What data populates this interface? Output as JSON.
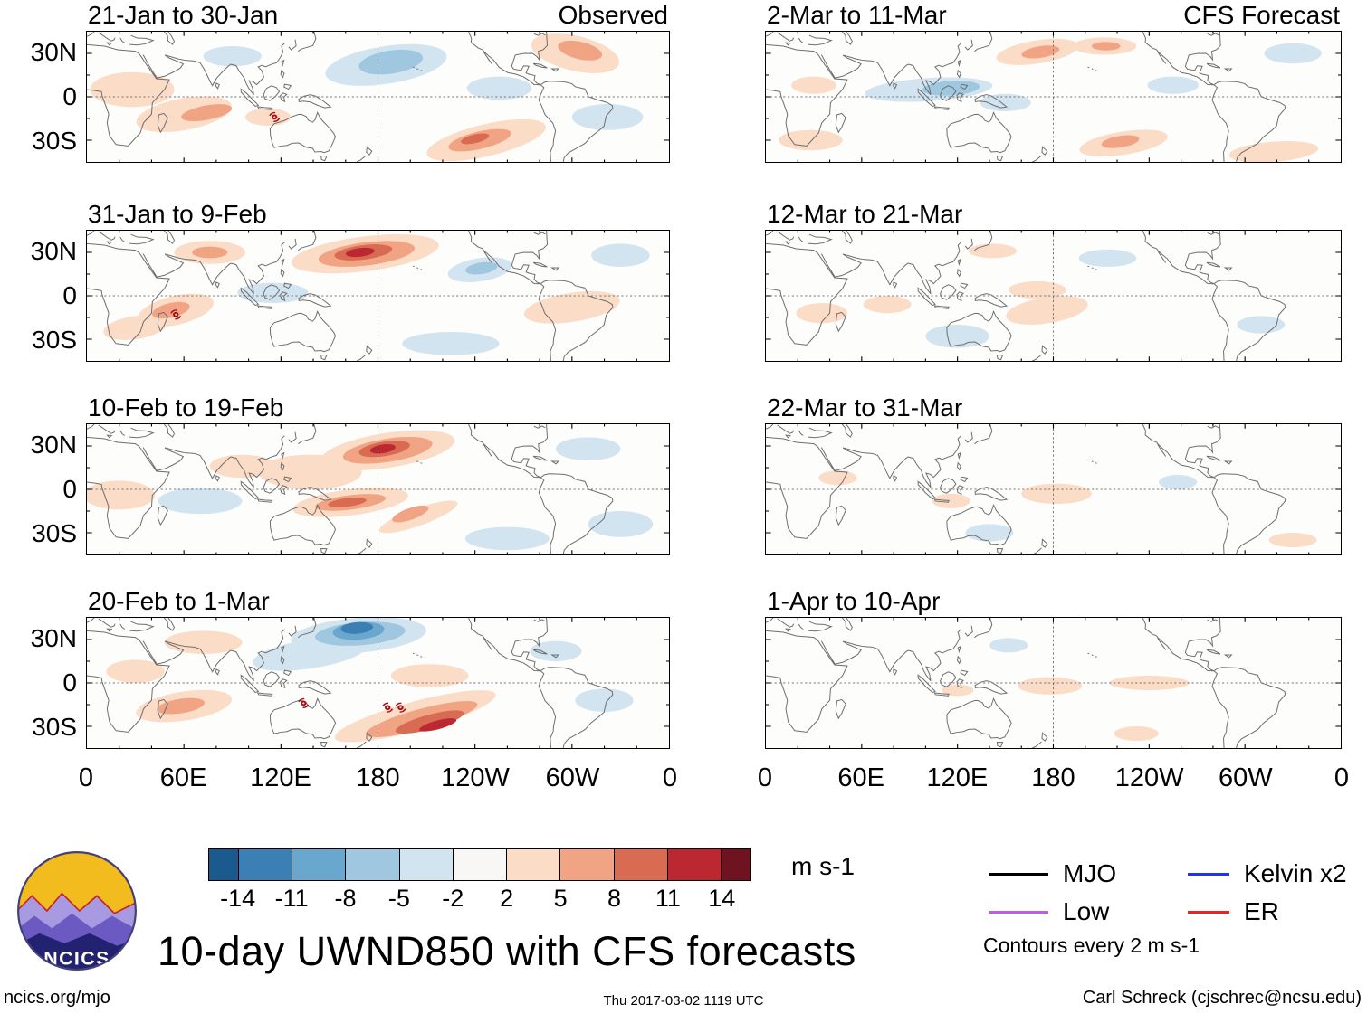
{
  "logo": {
    "text": "NCICS"
  },
  "footer": {
    "left": "ncics.org/mjo",
    "center": "Thu 2017-03-02 1119 UTC",
    "right": "Carl Schreck (cjschrec@ncsu.edu)"
  },
  "chart_data": {
    "type": "heatmap",
    "title": "10-day UWND850 with CFS forecasts",
    "contour_note": "Contours every 2 m s-1",
    "x_ticks": [
      "0",
      "60E",
      "120E",
      "180",
      "120W",
      "60W",
      "0"
    ],
    "y_ticks": [
      "30N",
      "0",
      "30S"
    ],
    "colorbar": {
      "boundaries": [
        -14,
        -11,
        -8,
        -5,
        -2,
        2,
        5,
        8,
        11,
        14
      ],
      "colors": [
        "#1a5a8e",
        "#3b7fb5",
        "#6aa7cf",
        "#9fc8e0",
        "#d2e4f0",
        "#f8f7f5",
        "#fbdcc7",
        "#f1a483",
        "#d96b53",
        "#bb2832",
        "#701321"
      ],
      "units_label": "m s-1"
    },
    "legend": [
      {
        "label": "MJO",
        "color": "#000000"
      },
      {
        "label": "Kelvin x2",
        "color": "#2233ee"
      },
      {
        "label": "Low",
        "color": "#c45ae8"
      },
      {
        "label": "ER",
        "color": "#ee2222"
      }
    ],
    "blob_format": "[lon_deg_east, lat_deg, rx_deg, ry_deg, rotation_deg, anomaly_m_s]",
    "panels": [
      {
        "title": "21-Jan to 30-Jan",
        "corner_label": "Observed",
        "blobs": [
          [
            28,
            5,
            26,
            12,
            0,
            3
          ],
          [
            60,
            -12,
            30,
            11,
            -12,
            3
          ],
          [
            74,
            -11,
            16,
            5,
            -12,
            6
          ],
          [
            112,
            -14,
            14,
            6,
            0,
            3
          ],
          [
            185,
            22,
            38,
            13,
            -10,
            -3
          ],
          [
            188,
            24,
            20,
            8,
            -10,
            -6
          ],
          [
            90,
            28,
            18,
            7,
            0,
            -3
          ],
          [
            247,
            -30,
            38,
            11,
            -15,
            3
          ],
          [
            243,
            -30,
            20,
            6,
            -15,
            6
          ],
          [
            240,
            -29,
            9,
            3,
            -15,
            9
          ],
          [
            302,
            30,
            28,
            12,
            15,
            3
          ],
          [
            305,
            32,
            14,
            6,
            15,
            6
          ],
          [
            255,
            6,
            20,
            8,
            0,
            -3
          ],
          [
            322,
            -14,
            22,
            9,
            0,
            -3
          ]
        ],
        "storms": [
          [
            116,
            -14
          ]
        ]
      },
      {
        "title": "31-Jan to 9-Feb",
        "blobs": [
          [
            172,
            29,
            46,
            12,
            -8,
            3
          ],
          [
            173,
            29,
            30,
            8,
            -8,
            6
          ],
          [
            171,
            30,
            18,
            5,
            -8,
            9
          ],
          [
            169,
            30,
            9,
            3,
            -8,
            12
          ],
          [
            55,
            -10,
            24,
            10,
            -15,
            3
          ],
          [
            52,
            -10,
            12,
            5,
            -15,
            6
          ],
          [
            76,
            30,
            22,
            8,
            0,
            3
          ],
          [
            76,
            30,
            11,
            4,
            0,
            6
          ],
          [
            115,
            2,
            22,
            7,
            0,
            -3
          ],
          [
            243,
            18,
            20,
            8,
            -10,
            -3
          ],
          [
            244,
            19,
            10,
            4,
            -10,
            -6
          ],
          [
            225,
            -33,
            30,
            8,
            0,
            -3
          ],
          [
            300,
            -8,
            30,
            10,
            -10,
            3
          ],
          [
            330,
            28,
            18,
            8,
            0,
            -3
          ],
          [
            30,
            -22,
            20,
            8,
            -10,
            3
          ]
        ],
        "storms": [
          [
            55,
            -13
          ]
        ]
      },
      {
        "title": "10-Feb to 19-Feb",
        "blobs": [
          [
            186,
            27,
            42,
            12,
            -10,
            3
          ],
          [
            186,
            27,
            28,
            8,
            -10,
            6
          ],
          [
            184,
            28,
            16,
            5,
            -10,
            9
          ],
          [
            183,
            28,
            8,
            3,
            -10,
            12
          ],
          [
            163,
            -9,
            36,
            9,
            -8,
            3
          ],
          [
            163,
            -9,
            22,
            5,
            -8,
            6
          ],
          [
            161,
            -9,
            12,
            3,
            -8,
            9
          ],
          [
            205,
            -19,
            26,
            6,
            -22,
            3
          ],
          [
            200,
            -17,
            12,
            4,
            -22,
            6
          ],
          [
            138,
            12,
            32,
            12,
            0,
            3
          ],
          [
            96,
            16,
            20,
            8,
            0,
            3
          ],
          [
            70,
            -8,
            26,
            9,
            0,
            -3
          ],
          [
            20,
            -4,
            22,
            10,
            0,
            3
          ],
          [
            260,
            -34,
            26,
            8,
            0,
            -3
          ],
          [
            310,
            28,
            20,
            8,
            0,
            -3
          ],
          [
            330,
            -24,
            20,
            9,
            0,
            -3
          ]
        ],
        "storms": []
      },
      {
        "title": "20-Feb to 1-Mar",
        "blobs": [
          [
            168,
            33,
            42,
            12,
            -5,
            -3
          ],
          [
            169,
            34,
            28,
            8,
            -5,
            -6
          ],
          [
            168,
            36,
            16,
            6,
            -5,
            -9
          ],
          [
            167,
            38,
            10,
            4,
            -5,
            -12
          ],
          [
            138,
            20,
            36,
            10,
            -10,
            -3
          ],
          [
            203,
            -23,
            52,
            10,
            -17,
            3
          ],
          [
            207,
            -25,
            36,
            7,
            -17,
            6
          ],
          [
            212,
            -27,
            22,
            5,
            -17,
            9
          ],
          [
            217,
            -29,
            12,
            3,
            -17,
            12
          ],
          [
            60,
            -16,
            30,
            10,
            -10,
            3
          ],
          [
            58,
            -16,
            15,
            5,
            -10,
            6
          ],
          [
            72,
            28,
            24,
            8,
            0,
            3
          ],
          [
            212,
            5,
            24,
            8,
            0,
            3
          ],
          [
            320,
            -12,
            18,
            8,
            0,
            -3
          ],
          [
            290,
            22,
            16,
            7,
            0,
            -3
          ],
          [
            30,
            8,
            18,
            8,
            0,
            3
          ]
        ],
        "storms": [
          [
            134,
            -14
          ],
          [
            186,
            -17
          ],
          [
            194,
            -17
          ]
        ]
      },
      {
        "title": "2-Mar to 11-Mar",
        "corner_label": "CFS Forecast",
        "blobs": [
          [
            170,
            31,
            26,
            8,
            -10,
            3
          ],
          [
            172,
            31,
            12,
            4,
            -10,
            6
          ],
          [
            212,
            35,
            20,
            6,
            0,
            3
          ],
          [
            213,
            35,
            9,
            3,
            0,
            6
          ],
          [
            102,
            5,
            40,
            8,
            -4,
            -3
          ],
          [
            116,
            6,
            18,
            5,
            -4,
            -6
          ],
          [
            150,
            -4,
            16,
            6,
            0,
            -3
          ],
          [
            224,
            -32,
            28,
            8,
            -10,
            3
          ],
          [
            222,
            -31,
            12,
            4,
            -10,
            6
          ],
          [
            318,
            -38,
            28,
            7,
            -5,
            3
          ],
          [
            30,
            8,
            14,
            6,
            0,
            3
          ],
          [
            255,
            8,
            16,
            6,
            0,
            -3
          ],
          [
            330,
            30,
            18,
            7,
            0,
            -3
          ],
          [
            28,
            -30,
            20,
            7,
            0,
            3
          ]
        ],
        "storms": []
      },
      {
        "title": "12-Mar to 21-Mar",
        "blobs": [
          [
            176,
            -10,
            26,
            9,
            -10,
            3
          ],
          [
            170,
            4,
            18,
            6,
            0,
            3
          ],
          [
            120,
            -28,
            20,
            8,
            0,
            -3
          ],
          [
            214,
            26,
            18,
            6,
            0,
            -3
          ],
          [
            76,
            -6,
            15,
            6,
            0,
            3
          ],
          [
            310,
            -20,
            15,
            6,
            0,
            -3
          ],
          [
            142,
            31,
            15,
            5,
            0,
            3
          ],
          [
            35,
            -12,
            16,
            7,
            0,
            3
          ]
        ],
        "storms": []
      },
      {
        "title": "22-Mar to 31-Mar",
        "blobs": [
          [
            182,
            -3,
            22,
            7,
            0,
            3
          ],
          [
            116,
            -8,
            12,
            5,
            0,
            3
          ],
          [
            140,
            -30,
            15,
            6,
            0,
            -3
          ],
          [
            258,
            5,
            12,
            5,
            0,
            -3
          ],
          [
            330,
            -35,
            15,
            5,
            0,
            3
          ],
          [
            45,
            8,
            12,
            5,
            0,
            3
          ]
        ],
        "storms": []
      },
      {
        "title": "1-Apr to 10-Apr",
        "blobs": [
          [
            178,
            -2,
            20,
            6,
            0,
            3
          ],
          [
            120,
            -5,
            10,
            4,
            0,
            3
          ],
          [
            152,
            26,
            12,
            5,
            0,
            -3
          ],
          [
            232,
            -35,
            14,
            5,
            0,
            3
          ],
          [
            240,
            0,
            25,
            5,
            0,
            3
          ]
        ],
        "storms": []
      }
    ]
  }
}
